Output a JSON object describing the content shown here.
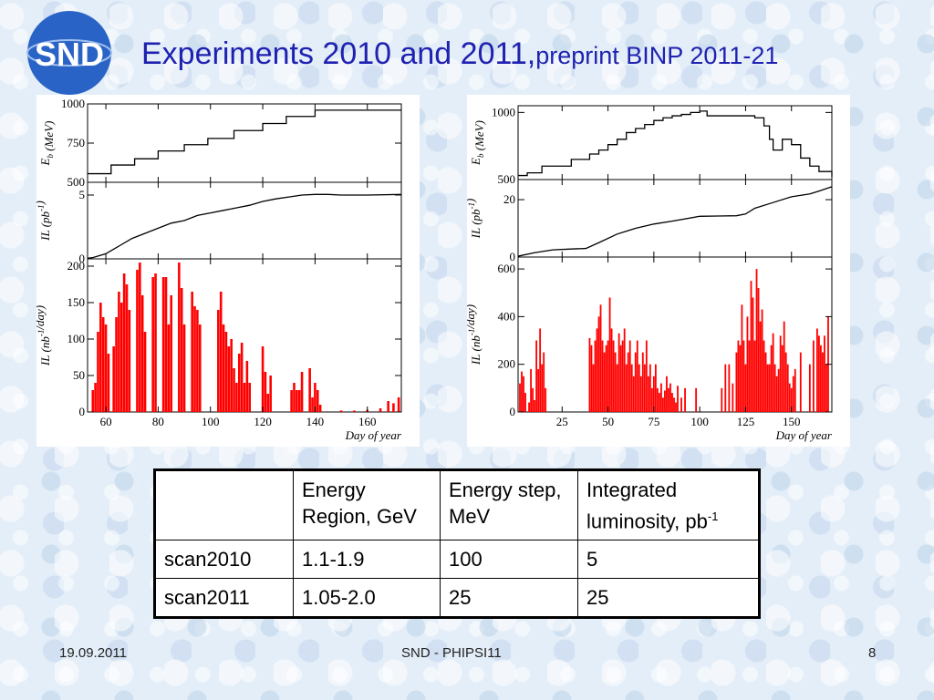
{
  "slide": {
    "logo_text": "SND",
    "title_main": "Experiments 2010 and 2011,",
    "title_sub": "preprint BINP 2011-21",
    "footer_date": "19.09.2011",
    "footer_center": "SND - PHIPSI11",
    "footer_page": "8"
  },
  "table": {
    "headers": [
      "",
      "Energy Region, GeV",
      "Energy step, MeV",
      "Integrated luminosity, pb"
    ],
    "header_superscript": "-1",
    "rows": [
      [
        "scan2010",
        "1.1-1.9",
        "100",
        "5"
      ],
      [
        "scan2011",
        "1.05-2.0",
        "25",
        "25"
      ]
    ]
  },
  "colors": {
    "title": "#1f22b0",
    "bars": "#ff0000",
    "logo": "#2a63c6"
  },
  "chart_data": [
    {
      "type": "line",
      "panel": "2010",
      "xlabel": "Day of year",
      "xticks": [
        60,
        80,
        100,
        120,
        140,
        160
      ],
      "xlim": [
        53,
        173
      ],
      "subplots": [
        {
          "id": "energy",
          "ylabel": "E_b (MeV)",
          "ylim": [
            500,
            1000
          ],
          "yticks": [
            500,
            750,
            1000
          ],
          "series": [
            {
              "x": [
                53,
                57,
                62,
                66,
                71,
                75,
                80,
                84,
                90,
                94,
                99,
                104,
                109,
                114,
                120,
                125,
                129,
                135,
                140,
                145,
                173
              ],
              "y": [
                555,
                555,
                610,
                610,
                650,
                650,
                700,
                700,
                740,
                740,
                780,
                780,
                830,
                830,
                875,
                875,
                920,
                920,
                960,
                960,
                960
              ]
            }
          ]
        },
        {
          "id": "integrated",
          "ylabel": "IL (pb^-1)",
          "ylim": [
            0,
            6
          ],
          "yticks": [
            0,
            5
          ],
          "series": [
            {
              "x": [
                53,
                55,
                60,
                65,
                70,
                75,
                80,
                85,
                90,
                95,
                100,
                105,
                110,
                115,
                120,
                125,
                130,
                135,
                140,
                145,
                150,
                160,
                173
              ],
              "y": [
                0.05,
                0.1,
                0.4,
                1.0,
                1.6,
                2.0,
                2.4,
                2.8,
                3.0,
                3.4,
                3.6,
                3.8,
                4.0,
                4.2,
                4.5,
                4.7,
                4.85,
                5.0,
                5.05,
                5.05,
                5.0,
                5.0,
                5.05
              ]
            }
          ]
        },
        {
          "id": "daily",
          "type": "bar",
          "ylabel": "IL (nb^-1/day)",
          "ylim": [
            0,
            210
          ],
          "yticks": [
            0,
            50,
            100,
            150,
            200
          ],
          "series": [
            {
              "x": [
                55,
                56,
                57,
                58,
                59,
                60,
                61,
                62,
                63,
                64,
                65,
                66,
                67,
                68,
                69,
                70,
                71,
                72,
                73,
                74,
                75,
                76,
                77,
                78,
                79,
                80,
                81,
                82,
                83,
                84,
                85,
                86,
                87,
                88,
                89,
                90,
                91,
                92,
                93,
                94,
                95,
                96,
                97,
                98,
                99,
                100,
                101,
                102,
                103,
                104,
                105,
                106,
                107,
                108,
                109,
                110,
                111,
                112,
                113,
                114,
                115,
                116,
                117,
                118,
                119,
                120,
                121,
                122,
                123,
                124,
                125,
                126,
                127,
                128,
                129,
                130,
                131,
                132,
                133,
                134,
                135,
                136,
                137,
                138,
                139,
                140,
                141,
                142,
                150,
                155,
                160,
                165,
                168,
                170,
                172
              ],
              "y": [
                30,
                40,
                110,
                150,
                130,
                120,
                80,
                0,
                90,
                130,
                165,
                150,
                190,
                175,
                140,
                0,
                0,
                195,
                205,
                160,
                110,
                0,
                0,
                185,
                190,
                0,
                0,
                185,
                185,
                120,
                160,
                0,
                0,
                205,
                170,
                120,
                0,
                0,
                165,
                145,
                140,
                120,
                0,
                0,
                0,
                0,
                0,
                0,
                140,
                165,
                120,
                110,
                90,
                100,
                60,
                40,
                80,
                95,
                40,
                70,
                40,
                0,
                0,
                0,
                0,
                90,
                55,
                25,
                50,
                0,
                0,
                0,
                0,
                0,
                0,
                0,
                30,
                40,
                30,
                30,
                55,
                0,
                0,
                60,
                20,
                40,
                30,
                10,
                2,
                2,
                3,
                5,
                15,
                12,
                20
              ]
            }
          ]
        }
      ]
    },
    {
      "type": "line",
      "panel": "2011",
      "xlabel": "Day of year",
      "xticks": [
        25,
        50,
        75,
        100,
        125,
        150
      ],
      "xlim": [
        1,
        172
      ],
      "subplots": [
        {
          "id": "energy",
          "ylabel": "E_b (MeV)",
          "ylim": [
            500,
            1050
          ],
          "yticks": [
            500,
            1000
          ],
          "series": [
            {
              "x": [
                1,
                6,
                14,
                30,
                38,
                40,
                45,
                50,
                55,
                60,
                65,
                70,
                75,
                80,
                85,
                90,
                95,
                100,
                104,
                110,
                115,
                120,
                125,
                130,
                135,
                138,
                140,
                145,
                150,
                155,
                160,
                165,
                172
              ],
              "y": [
                530,
                550,
                600,
                650,
                650,
                690,
                720,
                760,
                800,
                850,
                880,
                910,
                940,
                960,
                975,
                985,
                1000,
                1010,
                975,
                975,
                975,
                975,
                975,
                960,
                900,
                800,
                720,
                800,
                760,
                660,
                600,
                560,
                520
              ]
            }
          ]
        },
        {
          "id": "integrated",
          "ylabel": "IL (pb^-1)",
          "ylim": [
            0,
            27
          ],
          "yticks": [
            0,
            20
          ],
          "series": [
            {
              "x": [
                1,
                10,
                20,
                30,
                38,
                45,
                55,
                65,
                75,
                85,
                100,
                110,
                120,
                125,
                130,
                140,
                150,
                160,
                165,
                172
              ],
              "y": [
                0.3,
                1.5,
                2.5,
                2.8,
                3.0,
                5,
                8,
                10,
                11.5,
                12.5,
                14.2,
                14.3,
                14.4,
                15,
                17,
                19,
                21,
                22,
                23,
                24.5
              ]
            }
          ]
        },
        {
          "id": "daily",
          "type": "bar",
          "ylabel": "IL (nb^-1/day)",
          "ylim": [
            0,
            650
          ],
          "yticks": [
            0,
            200,
            400,
            600
          ],
          "series": [
            {
              "x": [
                2,
                3,
                4,
                5,
                7,
                8,
                9,
                10,
                11,
                12,
                13,
                14,
                15,
                16,
                40,
                41,
                42,
                43,
                44,
                45,
                46,
                47,
                48,
                49,
                50,
                51,
                52,
                53,
                54,
                55,
                56,
                57,
                58,
                59,
                60,
                61,
                62,
                63,
                64,
                65,
                66,
                67,
                68,
                69,
                70,
                71,
                72,
                73,
                74,
                75,
                76,
                77,
                78,
                79,
                80,
                81,
                82,
                83,
                84,
                85,
                86,
                87,
                88,
                90,
                92,
                98,
                112,
                114,
                116,
                118,
                120,
                121,
                122,
                123,
                124,
                125,
                126,
                127,
                128,
                129,
                130,
                131,
                132,
                133,
                134,
                135,
                136,
                137,
                138,
                139,
                140,
                141,
                142,
                143,
                144,
                145,
                146,
                147,
                148,
                149,
                150,
                151,
                152,
                155,
                160,
                162,
                164,
                165,
                166,
                167,
                168,
                169,
                170
              ],
              "y": [
                120,
                170,
                150,
                80,
                40,
                180,
                100,
                50,
                300,
                180,
                350,
                200,
                250,
                100,
                310,
                280,
                200,
                300,
                350,
                400,
                450,
                300,
                250,
                280,
                300,
                480,
                350,
                300,
                250,
                200,
                330,
                280,
                300,
                350,
                200,
                250,
                300,
                200,
                150,
                250,
                300,
                200,
                150,
                250,
                200,
                300,
                150,
                200,
                100,
                150,
                200,
                100,
                80,
                120,
                60,
                90,
                150,
                100,
                120,
                80,
                60,
                40,
                110,
                60,
                100,
                100,
                100,
                200,
                200,
                120,
                250,
                300,
                280,
                450,
                300,
                200,
                400,
                300,
                550,
                480,
                300,
                600,
                520,
                380,
                430,
                300,
                250,
                200,
                200,
                280,
                330,
                200,
                150,
                180,
                320,
                280,
                380,
                250,
                200,
                120,
                100,
                150,
                180,
                250,
                200,
                300,
                350,
                320,
                280,
                250,
                320,
                200,
                400
              ]
            }
          ]
        }
      ]
    }
  ]
}
